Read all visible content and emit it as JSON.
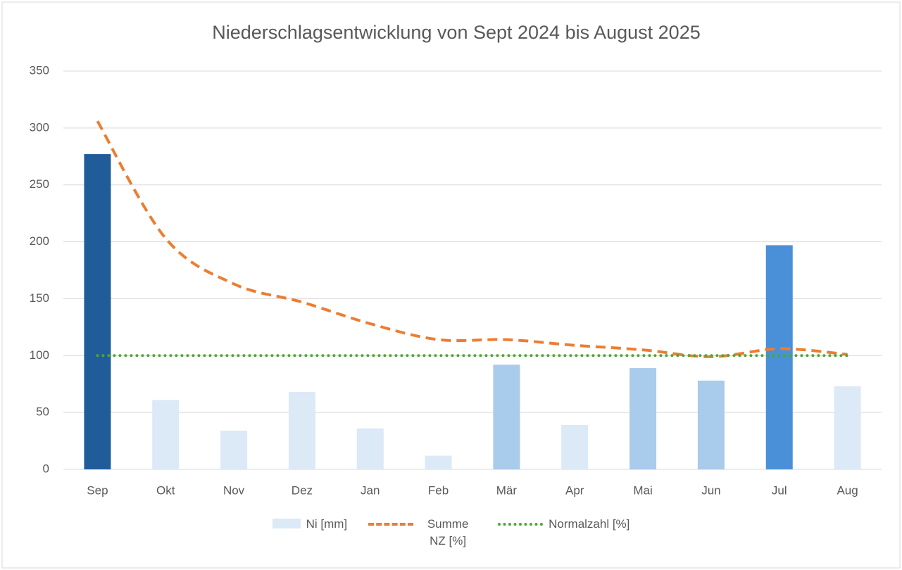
{
  "chart_data": {
    "type": "bar",
    "title": "Niederschlagsentwicklung von Sept 2024 bis August 2025",
    "categories": [
      "Sep",
      "Okt",
      "Nov",
      "Dez",
      "Jan",
      "Feb",
      "Mär",
      "Apr",
      "Mai",
      "Jun",
      "Jul",
      "Aug"
    ],
    "series": [
      {
        "name": "Ni [mm]",
        "type": "bar",
        "color": "#dce9f6",
        "colors": [
          "#1f5c99",
          "#dce9f6",
          "#dce9f6",
          "#dce9f6",
          "#dce9f6",
          "#dce9f6",
          "#a9cbec",
          "#dce9f6",
          "#a9cbec",
          "#a9cbec",
          "#4a90d9",
          "#dce9f6"
        ],
        "values": [
          277,
          61,
          34,
          68,
          36,
          12,
          92,
          39,
          89,
          78,
          197,
          73
        ]
      },
      {
        "name": "Summe NZ [%]",
        "type": "line",
        "color": "#ed7d31",
        "dash": "dashed",
        "smooth": true,
        "values": [
          306,
          203,
          163,
          147,
          128,
          114,
          114,
          109,
          105,
          99,
          106,
          101
        ]
      },
      {
        "name": "Normalzahl [%]",
        "type": "line",
        "color": "#4aa832",
        "dash": "dotted",
        "smooth": false,
        "values": [
          100,
          100,
          100,
          100,
          100,
          100,
          100,
          100,
          100,
          100,
          100,
          100
        ]
      }
    ],
    "ylim": [
      0,
      350
    ],
    "yticks": [
      0,
      50,
      100,
      150,
      200,
      250,
      300,
      350
    ],
    "grid": true,
    "legend": "bottom"
  }
}
